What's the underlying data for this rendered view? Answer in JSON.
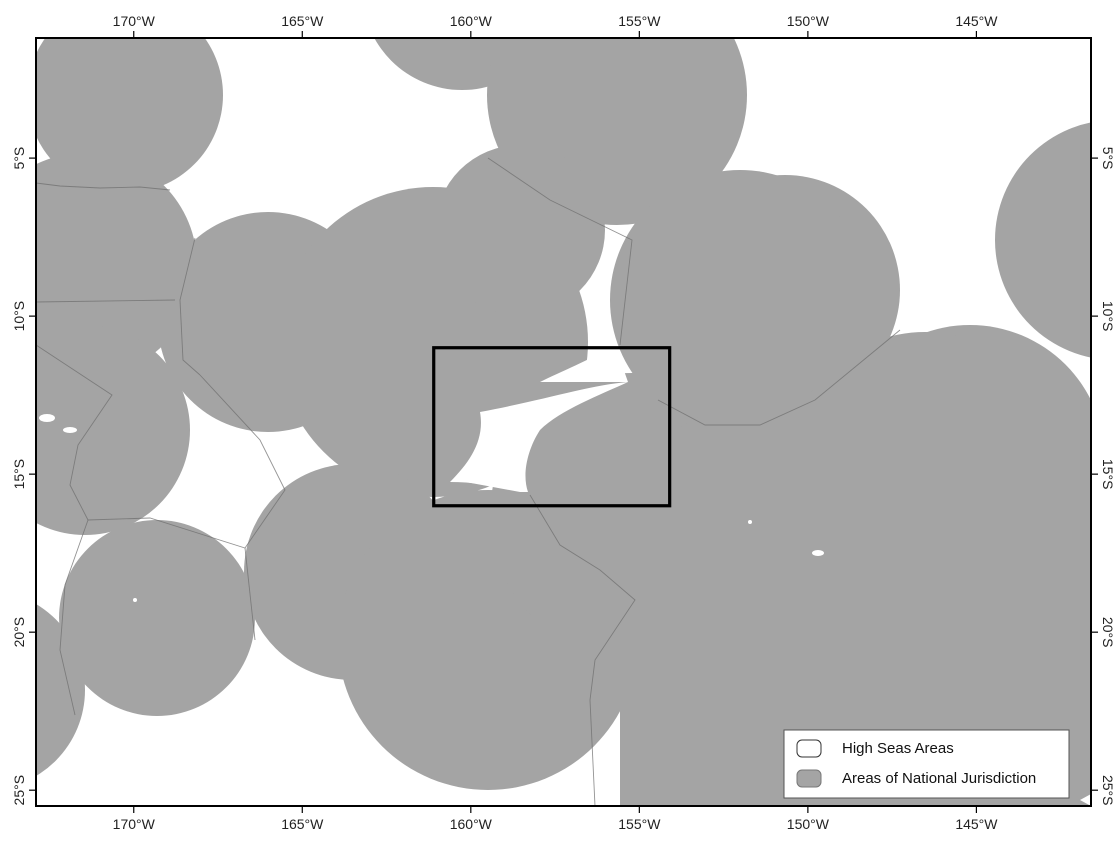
{
  "map": {
    "x_ticks": [
      {
        "value": -170,
        "label": "170°W"
      },
      {
        "value": -165,
        "label": "165°W"
      },
      {
        "value": -160,
        "label": "160°W"
      },
      {
        "value": -155,
        "label": "155°W"
      },
      {
        "value": -150,
        "label": "150°W"
      },
      {
        "value": -145,
        "label": "145°W"
      }
    ],
    "y_ticks": [
      {
        "value": -5,
        "label": "5°S"
      },
      {
        "value": -10,
        "label": "10°S"
      },
      {
        "value": -15,
        "label": "15°S"
      },
      {
        "value": -20,
        "label": "20°S"
      },
      {
        "value": -25,
        "label": "25°S"
      }
    ],
    "extent": {
      "lon": [
        -172.9,
        -141.6
      ],
      "lat": [
        -25.5,
        -1.2
      ]
    },
    "highlight_box": {
      "lon": [
        -161.1,
        -154.1
      ],
      "lat": [
        -16.0,
        -11.0
      ]
    },
    "colors": {
      "jurisdiction": "#a4a4a4",
      "high_seas": "#ffffff",
      "frame": "#000000"
    }
  },
  "legend": {
    "items": [
      {
        "label": "High Seas Areas",
        "color": "#ffffff"
      },
      {
        "label": "Areas of National Jurisdiction",
        "color": "#a4a4a4"
      }
    ]
  }
}
